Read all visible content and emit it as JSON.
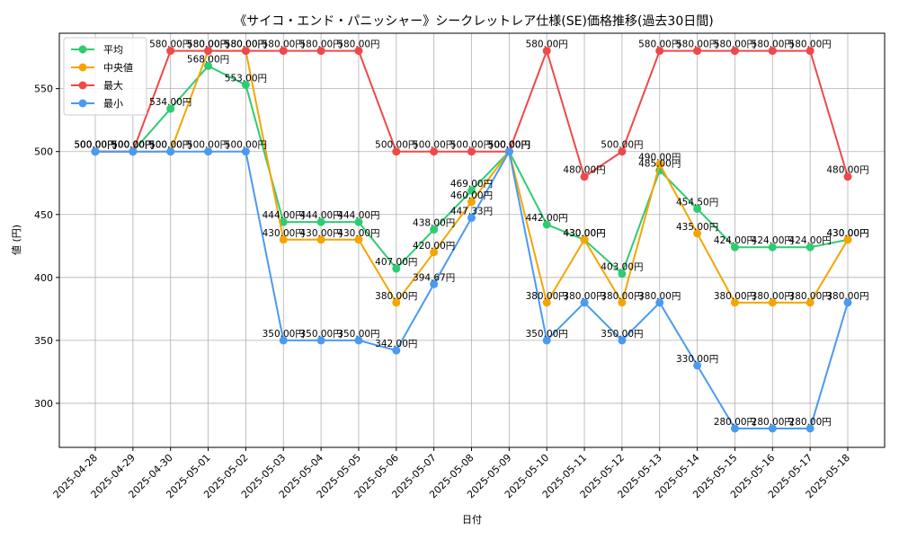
{
  "chart_data": {
    "type": "line",
    "title": "《サイコ・エンド・パニッシャー》シークレットレア仕様(SE)価格推移(過去30日間)",
    "xlabel": "日付",
    "ylabel": "値 (円)",
    "ylim": [
      265,
      594
    ],
    "yticks": [
      300,
      350,
      400,
      450,
      500,
      550
    ],
    "grid": true,
    "legend_position": "top-left",
    "value_label_suffix": "円",
    "categories": [
      "2025-04-28",
      "2025-04-29",
      "2025-04-30",
      "2025-05-01",
      "2025-05-02",
      "2025-05-03",
      "2025-05-04",
      "2025-05-05",
      "2025-05-06",
      "2025-05-07",
      "2025-05-08",
      "2025-05-09",
      "2025-05-10",
      "2025-05-11",
      "2025-05-12",
      "2025-05-13",
      "2025-05-14",
      "2025-05-15",
      "2025-05-16",
      "2025-05-17",
      "2025-05-18"
    ],
    "series": [
      {
        "name": "平均",
        "color": "#2ecc71",
        "values": [
          500,
          500,
          534,
          568,
          553,
          444,
          444,
          444,
          407,
          438,
          469,
          500,
          442,
          430,
          403,
          485,
          454.5,
          424,
          424,
          424,
          430
        ]
      },
      {
        "name": "中央値",
        "color": "#f5a500",
        "values": [
          500,
          500,
          500,
          580,
          580,
          430,
          430,
          430,
          380,
          420,
          460,
          500,
          380,
          430,
          380,
          490,
          435,
          380,
          380,
          380,
          430
        ]
      },
      {
        "name": "最大",
        "color": "#f04848",
        "values": [
          500,
          500,
          580,
          580,
          580,
          580,
          580,
          580,
          500,
          500,
          500,
          500,
          580,
          480,
          500,
          580,
          580,
          580,
          580,
          580,
          480
        ]
      },
      {
        "name": "最小",
        "color": "#4a9af0",
        "values": [
          500,
          500,
          500,
          500,
          500,
          350,
          350,
          350,
          342,
          394.67,
          447.33,
          500,
          350,
          380,
          350,
          380,
          330,
          280,
          280,
          280,
          380
        ]
      }
    ]
  }
}
